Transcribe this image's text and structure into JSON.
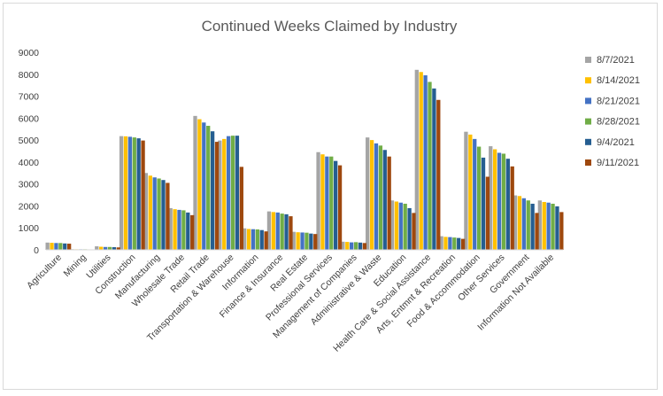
{
  "chart_data": {
    "type": "bar",
    "title": "Continued Weeks Claimed by Industry",
    "xlabel": "",
    "ylabel": "",
    "ylim": [
      0,
      9000
    ],
    "yticks": [
      "0",
      "1000",
      "2000",
      "3000",
      "4000",
      "5000",
      "6000",
      "7000",
      "8000",
      "9000"
    ],
    "grid": false,
    "legend_position": "right",
    "categories": [
      "Agriculture",
      "Mining",
      "Utilities",
      "Construction",
      "Manufacturing",
      "Wholesale Trade",
      "Retail Trade",
      "Transportation & Warehouse",
      "Information",
      "Finance & Insurance",
      "Real Estate",
      "Professional Services",
      "Management of Companies",
      "Administrative & Waste",
      "Education",
      "Health Care & Social Assistance",
      "Arts, Entmnt & Recreation",
      "Food & Accommodation",
      "Other Services",
      "Government",
      "Information Not Available"
    ],
    "series": [
      {
        "name": "8/7/2021",
        "color": "#a5a5a5",
        "values": [
          330,
          30,
          160,
          5180,
          3500,
          1900,
          6100,
          4980,
          980,
          1750,
          820,
          4450,
          370,
          5120,
          2250,
          8200,
          620,
          5380,
          4720,
          2480,
          2250
        ]
      },
      {
        "name": "8/14/2021",
        "color": "#ffc000",
        "values": [
          320,
          25,
          140,
          5170,
          3380,
          1850,
          5950,
          5050,
          950,
          1720,
          800,
          4350,
          360,
          5000,
          2200,
          8100,
          590,
          5250,
          4580,
          2450,
          2180
        ]
      },
      {
        "name": "8/21/2021",
        "color": "#4472c4",
        "values": [
          310,
          25,
          130,
          5150,
          3300,
          1820,
          5800,
          5180,
          940,
          1700,
          790,
          4250,
          340,
          4850,
          2150,
          7950,
          580,
          5050,
          4420,
          2350,
          2150
        ]
      },
      {
        "name": "8/28/2021",
        "color": "#70ad47",
        "values": [
          310,
          25,
          130,
          5120,
          3250,
          1800,
          5650,
          5200,
          930,
          1650,
          780,
          4250,
          350,
          4750,
          2100,
          7650,
          560,
          4700,
          4380,
          2250,
          2100
        ]
      },
      {
        "name": "9/4/2021",
        "color": "#255e91",
        "values": [
          290,
          20,
          120,
          5080,
          3180,
          1700,
          5400,
          5200,
          900,
          1620,
          740,
          4050,
          330,
          4550,
          1900,
          7350,
          540,
          4200,
          4150,
          2100,
          1980
        ]
      },
      {
        "name": "9/11/2021",
        "color": "#9e480e",
        "values": [
          280,
          20,
          110,
          4980,
          3050,
          1580,
          4920,
          3780,
          840,
          1530,
          720,
          3850,
          310,
          4250,
          1680,
          6830,
          500,
          3330,
          3800,
          1680,
          1720
        ]
      }
    ]
  }
}
